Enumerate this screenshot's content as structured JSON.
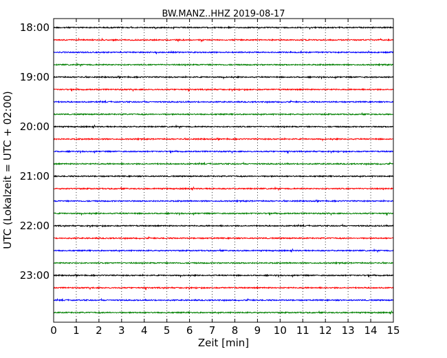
{
  "chart_data": {
    "type": "line",
    "title": "BW.MANZ..HHZ 2019-08-17",
    "xlabel": "Zeit  [min]",
    "ylabel": "UTC (Lokalzeit = UTC + 02:00)",
    "xlim": [
      0,
      15
    ],
    "x_ticks": [
      "0",
      "1",
      "2",
      "3",
      "4",
      "5",
      "6",
      "7",
      "8",
      "9",
      "10",
      "11",
      "12",
      "13",
      "14",
      "15"
    ],
    "y_ticks": [
      "18:00",
      "19:00",
      "20:00",
      "21:00",
      "22:00",
      "23:00"
    ],
    "grid": "vertical-dotted",
    "trace_colors": [
      "#000000",
      "#ff0000",
      "#0000ff",
      "#008000"
    ],
    "series": [
      {
        "start": "18:00",
        "color": "#000000"
      },
      {
        "start": "18:15",
        "color": "#ff0000"
      },
      {
        "start": "18:30",
        "color": "#0000ff"
      },
      {
        "start": "18:45",
        "color": "#008000"
      },
      {
        "start": "19:00",
        "color": "#000000"
      },
      {
        "start": "19:15",
        "color": "#ff0000"
      },
      {
        "start": "19:30",
        "color": "#0000ff"
      },
      {
        "start": "19:45",
        "color": "#008000"
      },
      {
        "start": "20:00",
        "color": "#000000"
      },
      {
        "start": "20:15",
        "color": "#ff0000"
      },
      {
        "start": "20:30",
        "color": "#0000ff"
      },
      {
        "start": "20:45",
        "color": "#008000"
      },
      {
        "start": "21:00",
        "color": "#000000"
      },
      {
        "start": "21:15",
        "color": "#ff0000"
      },
      {
        "start": "21:30",
        "color": "#0000ff"
      },
      {
        "start": "21:45",
        "color": "#008000"
      },
      {
        "start": "22:00",
        "color": "#000000"
      },
      {
        "start": "22:15",
        "color": "#ff0000"
      },
      {
        "start": "22:30",
        "color": "#0000ff"
      },
      {
        "start": "22:45",
        "color": "#008000"
      },
      {
        "start": "23:00",
        "color": "#000000"
      },
      {
        "start": "23:15",
        "color": "#ff0000"
      },
      {
        "start": "23:30",
        "color": "#0000ff"
      },
      {
        "start": "23:45",
        "color": "#008000"
      }
    ]
  }
}
